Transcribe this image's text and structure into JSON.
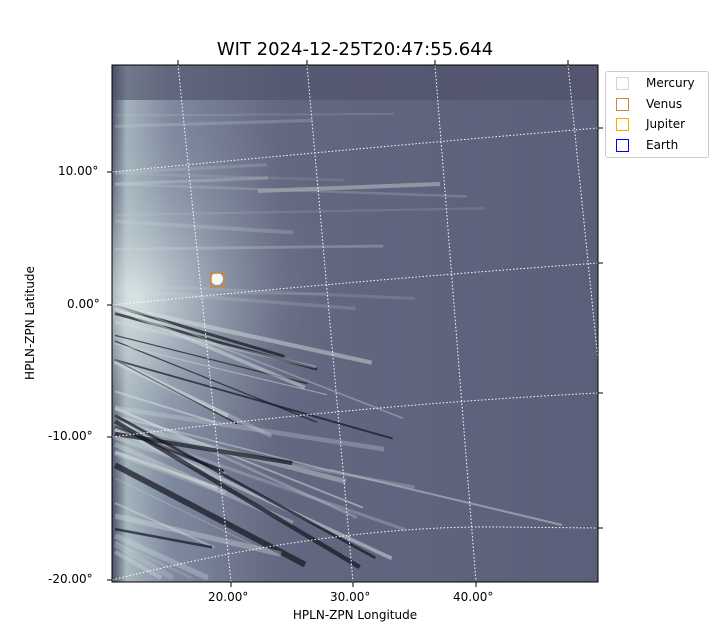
{
  "chart_data": {
    "type": "image",
    "title": "WIT 2024-12-25T20:47:55.644",
    "xlabel": "HPLN-ZPN Longitude",
    "ylabel": "HPLN-ZPN Latitude",
    "x_ticks": [
      "20.00°",
      "30.00°",
      "40.00°"
    ],
    "y_ticks": [
      "10.00°",
      "0.00°",
      "-10.00°",
      "-20.00°"
    ],
    "grid": true,
    "colormap": "bone",
    "legend_position": "outside-top-right",
    "legend": [
      {
        "name": "Mercury",
        "color": "#d3d3d3"
      },
      {
        "name": "Venus",
        "color": "#cd853f"
      },
      {
        "name": "Jupiter",
        "color": "#ffa500"
      },
      {
        "name": "Earth",
        "color": "#0000ff"
      }
    ],
    "markers": [
      {
        "name": "Venus",
        "lon": 18.7,
        "lat": 1.8,
        "color": "#cd853f"
      }
    ]
  }
}
